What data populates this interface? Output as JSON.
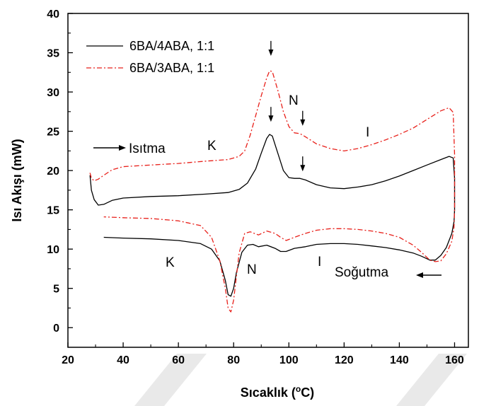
{
  "chart_data": {
    "type": "line",
    "xlabel": "Sıcaklık (",
    "xlabel_sup": "o",
    "xlabel_unit": "C)",
    "ylabel": "Isı Akışı (mW)",
    "xlim": [
      20,
      165
    ],
    "ylim": [
      -2.5,
      40
    ],
    "xticks": [
      20,
      40,
      60,
      80,
      100,
      120,
      140,
      160
    ],
    "yticks": [
      0,
      5,
      10,
      15,
      20,
      25,
      30,
      35,
      40
    ],
    "legend_position": "top-left",
    "series": [
      {
        "name": "6BA/4ABA,  1:1",
        "color": "#000000",
        "dash": "solid",
        "heating": [
          [
            28,
            19.4
          ],
          [
            28.5,
            17.5
          ],
          [
            29.5,
            16.3
          ],
          [
            31,
            15.6
          ],
          [
            33,
            15.7
          ],
          [
            36,
            16.2
          ],
          [
            40,
            16.5
          ],
          [
            50,
            16.7
          ],
          [
            60,
            16.8
          ],
          [
            70,
            17.0
          ],
          [
            78,
            17.2
          ],
          [
            82,
            17.6
          ],
          [
            85,
            18.4
          ],
          [
            88,
            20.2
          ],
          [
            90,
            22.2
          ],
          [
            92,
            24.1
          ],
          [
            93,
            24.6
          ],
          [
            94,
            24.4
          ],
          [
            96,
            22.2
          ],
          [
            98,
            20.0
          ],
          [
            100,
            19.1
          ],
          [
            102,
            19.0
          ],
          [
            104,
            19.0
          ],
          [
            106,
            18.8
          ],
          [
            110,
            18.2
          ],
          [
            115,
            17.8
          ],
          [
            120,
            17.7
          ],
          [
            125,
            17.9
          ],
          [
            130,
            18.2
          ],
          [
            135,
            18.7
          ],
          [
            140,
            19.3
          ],
          [
            145,
            20.0
          ],
          [
            150,
            20.7
          ],
          [
            155,
            21.4
          ],
          [
            158,
            21.8
          ],
          [
            159.5,
            21.6
          ],
          [
            160,
            19.0
          ],
          [
            160,
            15.0
          ]
        ],
        "cooling": [
          [
            160,
            15.0
          ],
          [
            159.8,
            13.5
          ],
          [
            159,
            12.0
          ],
          [
            157,
            10.2
          ],
          [
            155,
            9.2
          ],
          [
            153,
            8.6
          ],
          [
            151,
            8.6
          ],
          [
            148,
            9.1
          ],
          [
            145,
            9.5
          ],
          [
            140,
            9.9
          ],
          [
            135,
            10.2
          ],
          [
            130,
            10.4
          ],
          [
            125,
            10.6
          ],
          [
            120,
            10.7
          ],
          [
            115,
            10.7
          ],
          [
            110,
            10.6
          ],
          [
            106,
            10.3
          ],
          [
            102,
            10.1
          ],
          [
            99,
            9.7
          ],
          [
            97,
            9.7
          ],
          [
            95,
            10.1
          ],
          [
            92,
            10.5
          ],
          [
            89,
            10.3
          ],
          [
            87,
            10.6
          ],
          [
            85,
            10.5
          ],
          [
            83,
            9.6
          ],
          [
            81,
            7.0
          ],
          [
            80,
            5.0
          ],
          [
            79,
            4.0
          ],
          [
            78,
            4.2
          ],
          [
            77,
            6.0
          ],
          [
            75,
            8.5
          ],
          [
            72,
            10.0
          ],
          [
            68,
            10.7
          ],
          [
            60,
            11.1
          ],
          [
            50,
            11.3
          ],
          [
            40,
            11.4
          ],
          [
            33,
            11.5
          ]
        ]
      },
      {
        "name": "6BA/3ABA,  1:1",
        "color": "#e8201a",
        "dash": "dashdot",
        "heating": [
          [
            28,
            19.7
          ],
          [
            28.5,
            19.0
          ],
          [
            29.5,
            18.7
          ],
          [
            31,
            18.9
          ],
          [
            33,
            19.4
          ],
          [
            36,
            20.1
          ],
          [
            40,
            20.5
          ],
          [
            50,
            20.7
          ],
          [
            60,
            20.9
          ],
          [
            70,
            21.2
          ],
          [
            78,
            21.4
          ],
          [
            82,
            21.8
          ],
          [
            84,
            22.5
          ],
          [
            86,
            24.5
          ],
          [
            88,
            27.0
          ],
          [
            90,
            29.5
          ],
          [
            92,
            31.8
          ],
          [
            93,
            32.7
          ],
          [
            94,
            32.6
          ],
          [
            96,
            30.2
          ],
          [
            98,
            27.5
          ],
          [
            100,
            25.6
          ],
          [
            102,
            24.8
          ],
          [
            104,
            24.7
          ],
          [
            106,
            24.3
          ],
          [
            110,
            23.4
          ],
          [
            115,
            22.8
          ],
          [
            120,
            22.5
          ],
          [
            125,
            22.8
          ],
          [
            130,
            23.3
          ],
          [
            135,
            23.9
          ],
          [
            140,
            24.6
          ],
          [
            145,
            25.4
          ],
          [
            150,
            26.5
          ],
          [
            155,
            27.6
          ],
          [
            158,
            28.0
          ],
          [
            159.5,
            27.4
          ],
          [
            160,
            22.0
          ],
          [
            160,
            15.0
          ]
        ],
        "cooling": [
          [
            160,
            15.0
          ],
          [
            159.8,
            12.8
          ],
          [
            159,
            11.0
          ],
          [
            157,
            9.4
          ],
          [
            155,
            8.5
          ],
          [
            153,
            8.4
          ],
          [
            151,
            8.6
          ],
          [
            148,
            9.6
          ],
          [
            145,
            10.5
          ],
          [
            140,
            11.5
          ],
          [
            135,
            12.0
          ],
          [
            130,
            12.3
          ],
          [
            125,
            12.5
          ],
          [
            120,
            12.6
          ],
          [
            115,
            12.6
          ],
          [
            110,
            12.4
          ],
          [
            106,
            12.0
          ],
          [
            102,
            11.5
          ],
          [
            99,
            11.1
          ],
          [
            97,
            11.5
          ],
          [
            95,
            12.0
          ],
          [
            92,
            12.3
          ],
          [
            89,
            11.8
          ],
          [
            86,
            12.2
          ],
          [
            84,
            12.0
          ],
          [
            82,
            9.5
          ],
          [
            81,
            6.5
          ],
          [
            80,
            3.5
          ],
          [
            79,
            2.0
          ],
          [
            78,
            2.5
          ],
          [
            77,
            5.0
          ],
          [
            75,
            8.5
          ],
          [
            72,
            11.5
          ],
          [
            68,
            13.0
          ],
          [
            60,
            13.6
          ],
          [
            50,
            13.9
          ],
          [
            40,
            14.0
          ],
          [
            33,
            14.1
          ]
        ]
      }
    ],
    "annotations": {
      "heating_label": "Isıtma",
      "cooling_label": "Soğutma",
      "k_top": "K",
      "n_top": "N",
      "i_top": "I",
      "k_bottom": "K",
      "n_bottom": "N",
      "i_bottom": "I"
    }
  }
}
